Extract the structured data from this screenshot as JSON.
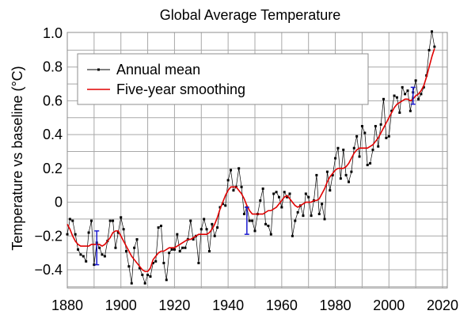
{
  "chart_data": {
    "type": "line",
    "title": "Global Average Temperature",
    "xlabel": "",
    "ylabel": "Temperature vs baseline (°C)",
    "xlim": [
      1880,
      2020
    ],
    "ylim": [
      -0.52,
      1.02
    ],
    "xticks": [
      1880,
      1900,
      1920,
      1940,
      1960,
      1980,
      2000,
      2020
    ],
    "xtick_labels": [
      "1880",
      "1900",
      "1920",
      "1940",
      "1960",
      "1980",
      "2000",
      "2020"
    ],
    "yticks": [
      -0.4,
      -0.2,
      0,
      0.2,
      0.4,
      0.6,
      0.8,
      1.0
    ],
    "ytick_labels": [
      "−0.4",
      "−0.2",
      "0",
      "0.2",
      "0.4",
      "0.6",
      "0.8",
      "1.0"
    ],
    "grid": true,
    "legend": {
      "placement": "top-left",
      "entries": [
        {
          "label": "Annual mean",
          "color": "#000000",
          "marker": "square"
        },
        {
          "label": "Five-year smoothing",
          "color": "#e00000",
          "marker": "none"
        }
      ]
    },
    "x": [
      1880,
      1881,
      1882,
      1883,
      1884,
      1885,
      1886,
      1887,
      1888,
      1889,
      1890,
      1891,
      1892,
      1893,
      1894,
      1895,
      1896,
      1897,
      1898,
      1899,
      1900,
      1901,
      1902,
      1903,
      1904,
      1905,
      1906,
      1907,
      1908,
      1909,
      1910,
      1911,
      1912,
      1913,
      1914,
      1915,
      1916,
      1917,
      1918,
      1919,
      1920,
      1921,
      1922,
      1923,
      1924,
      1925,
      1926,
      1927,
      1928,
      1929,
      1930,
      1931,
      1932,
      1933,
      1934,
      1935,
      1936,
      1937,
      1938,
      1939,
      1940,
      1941,
      1942,
      1943,
      1944,
      1945,
      1946,
      1947,
      1948,
      1949,
      1950,
      1951,
      1952,
      1953,
      1954,
      1955,
      1956,
      1957,
      1958,
      1959,
      1960,
      1961,
      1962,
      1963,
      1964,
      1965,
      1966,
      1967,
      1968,
      1969,
      1970,
      1971,
      1972,
      1973,
      1974,
      1975,
      1976,
      1977,
      1978,
      1979,
      1980,
      1981,
      1982,
      1983,
      1984,
      1985,
      1986,
      1987,
      1988,
      1989,
      1990,
      1991,
      1992,
      1993,
      1994,
      1995,
      1996,
      1997,
      1998,
      1999,
      2000,
      2001,
      2002,
      2003,
      2004,
      2005,
      2006,
      2007,
      2008,
      2009,
      2010,
      2011,
      2012,
      2013,
      2014,
      2015,
      2016,
      2017
    ],
    "series": [
      {
        "name": "Annual mean",
        "color": "#000000",
        "values": [
          -0.19,
          -0.1,
          -0.11,
          -0.19,
          -0.28,
          -0.31,
          -0.32,
          -0.35,
          -0.18,
          -0.11,
          -0.37,
          -0.24,
          -0.27,
          -0.31,
          -0.32,
          -0.23,
          -0.11,
          -0.11,
          -0.27,
          -0.18,
          -0.09,
          -0.16,
          -0.29,
          -0.38,
          -0.48,
          -0.27,
          -0.22,
          -0.39,
          -0.43,
          -0.48,
          -0.43,
          -0.44,
          -0.36,
          -0.35,
          -0.15,
          -0.14,
          -0.36,
          -0.46,
          -0.3,
          -0.28,
          -0.28,
          -0.19,
          -0.29,
          -0.27,
          -0.27,
          -0.22,
          -0.11,
          -0.22,
          -0.2,
          -0.36,
          -0.16,
          -0.1,
          -0.16,
          -0.29,
          -0.13,
          -0.2,
          -0.15,
          -0.03,
          -0.01,
          -0.02,
          0.13,
          0.19,
          0.07,
          0.09,
          0.2,
          0.09,
          -0.07,
          -0.03,
          -0.11,
          -0.11,
          -0.17,
          -0.07,
          0.01,
          0.08,
          -0.13,
          -0.14,
          -0.19,
          0.05,
          0.06,
          0.03,
          -0.03,
          0.06,
          0.03,
          0.05,
          -0.2,
          -0.11,
          -0.06,
          -0.02,
          -0.08,
          0.05,
          0.03,
          -0.08,
          0.01,
          0.16,
          -0.07,
          -0.01,
          -0.1,
          0.18,
          0.07,
          0.16,
          0.26,
          0.32,
          0.14,
          0.31,
          0.16,
          0.12,
          0.18,
          0.32,
          0.39,
          0.27,
          0.45,
          0.41,
          0.22,
          0.23,
          0.31,
          0.45,
          0.33,
          0.46,
          0.61,
          0.38,
          0.39,
          0.54,
          0.63,
          0.62,
          0.53,
          0.68,
          0.64,
          0.66,
          0.54,
          0.65,
          0.72,
          0.61,
          0.64,
          0.68,
          0.75,
          0.9,
          1.01,
          0.92
        ]
      },
      {
        "name": "Five-year smoothing",
        "color": "#e00000",
        "values": [
          -0.13,
          -0.16,
          -0.2,
          -0.23,
          -0.25,
          -0.26,
          -0.26,
          -0.26,
          -0.26,
          -0.25,
          -0.25,
          -0.25,
          -0.25,
          -0.26,
          -0.25,
          -0.23,
          -0.21,
          -0.18,
          -0.17,
          -0.17,
          -0.2,
          -0.23,
          -0.26,
          -0.29,
          -0.32,
          -0.34,
          -0.36,
          -0.38,
          -0.4,
          -0.41,
          -0.41,
          -0.39,
          -0.34,
          -0.32,
          -0.3,
          -0.29,
          -0.29,
          -0.28,
          -0.27,
          -0.27,
          -0.27,
          -0.26,
          -0.25,
          -0.24,
          -0.23,
          -0.22,
          -0.22,
          -0.21,
          -0.2,
          -0.19,
          -0.19,
          -0.19,
          -0.19,
          -0.18,
          -0.16,
          -0.13,
          -0.09,
          -0.04,
          0.0,
          0.04,
          0.07,
          0.09,
          0.09,
          0.09,
          0.07,
          0.05,
          0.02,
          -0.02,
          -0.05,
          -0.07,
          -0.07,
          -0.07,
          -0.07,
          -0.07,
          -0.06,
          -0.05,
          -0.05,
          -0.04,
          -0.03,
          -0.01,
          0.01,
          0.03,
          0.04,
          0.02,
          0.0,
          -0.02,
          -0.03,
          -0.02,
          -0.01,
          0.0,
          0.0,
          0.0,
          0.01,
          0.01,
          0.02,
          0.05,
          0.08,
          0.12,
          0.15,
          0.17,
          0.19,
          0.2,
          0.2,
          0.2,
          0.21,
          0.23,
          0.26,
          0.29,
          0.31,
          0.32,
          0.32,
          0.32,
          0.32,
          0.33,
          0.34,
          0.36,
          0.38,
          0.41,
          0.44,
          0.47,
          0.5,
          0.53,
          0.56,
          0.58,
          0.59,
          0.6,
          0.61,
          0.61,
          0.6,
          0.61,
          0.63,
          0.64,
          0.66,
          0.69,
          0.74,
          0.8,
          0.86,
          0.91
        ]
      }
    ],
    "error_bars": [
      {
        "x": 1891,
        "low": -0.37,
        "high": -0.17,
        "color": "#1a1ad0"
      },
      {
        "x": 1947,
        "low": -0.19,
        "high": -0.03,
        "color": "#1a1ad0"
      },
      {
        "x": 2009,
        "low": 0.58,
        "high": 0.68,
        "color": "#1a1ad0"
      }
    ]
  }
}
